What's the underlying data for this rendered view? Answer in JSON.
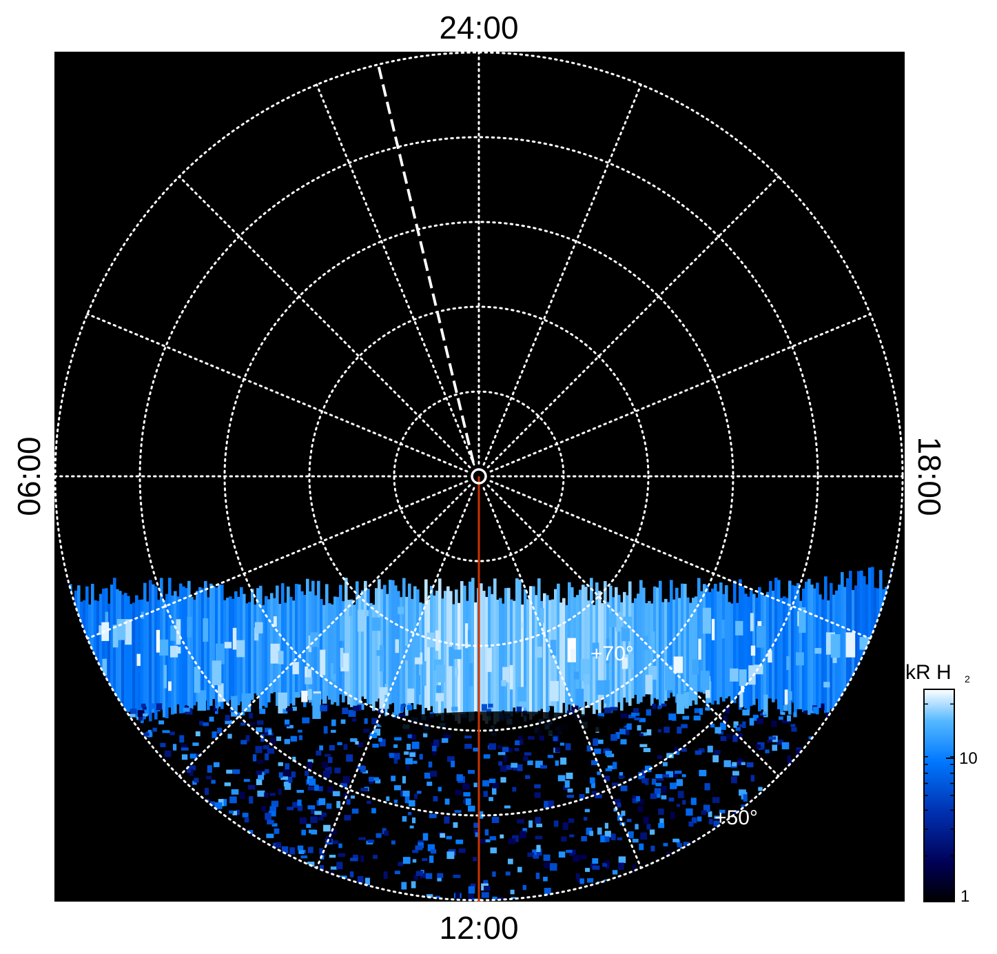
{
  "chart_data": {
    "type": "heatmap",
    "projection": "polar",
    "title": "",
    "local_time_labels": {
      "top": "24:00",
      "left": "06:00",
      "right": "18:00",
      "bottom": "12:00"
    },
    "latitude_labels": [
      {
        "text": "+70°",
        "value": 70
      },
      {
        "text": "+50°",
        "value": 50
      }
    ],
    "grid": {
      "visible": true,
      "style": "dotted",
      "color": "#ffffff",
      "latitude_circles_deg": [
        90,
        80,
        70,
        60,
        50,
        40
      ],
      "meridian_step_hours": 1.5
    },
    "emission": {
      "auroral_oval_latitude_range_deg": [
        62,
        75
      ],
      "noise_latitude_range_deg": [
        40,
        62
      ],
      "visible_local_time_range": "daylit hemisphere (approx. 05:00-19:00 via 12:00)",
      "peak_brightness_kR": 25
    },
    "colorbar": {
      "title": "kR H",
      "title_subscript": "2",
      "scale": "log",
      "range": [
        1,
        25
      ],
      "ticks": [
        1,
        10
      ],
      "tick_labels": [
        "1",
        "10"
      ],
      "colormap": [
        "#000000",
        "#000080",
        "#0078ff",
        "#ffffff"
      ]
    },
    "overlays": {
      "reference_line": {
        "color": "#cc3300",
        "local_time": "12:00"
      },
      "dashed_meridian": {
        "color": "#ffffff",
        "style": "dashed"
      },
      "pole_marker": {
        "color": "#ffffff",
        "shape": "circle"
      }
    }
  }
}
